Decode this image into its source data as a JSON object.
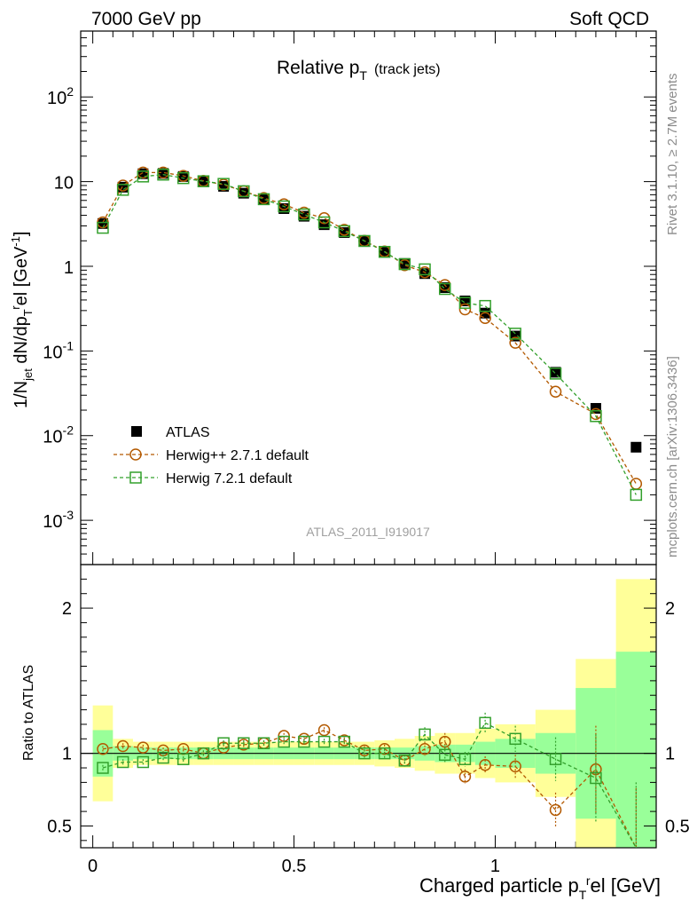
{
  "header": {
    "left": "7000 GeV pp",
    "right": "Soft QCD"
  },
  "plot_title": "Relative p",
  "plot_title_sub": "T",
  "plot_title_suffix": "(track jets)",
  "side_labels": {
    "rivet": "Rivet 3.1.10, ≥ 2.7M events",
    "mcplots": "mcplots.cern.ch [arXiv:1306.3436]"
  },
  "watermark": "ATLAS_2011_I919017",
  "ylabel_main": "1/N_jet dN/dp_T^rel [GeV^-1]",
  "ylabel_ratio": "Ratio to ATLAS",
  "xlabel": "Charged particle p_T^rel [GeV]",
  "legend": {
    "atlas": "ATLAS",
    "herwigpp": "Herwig++ 2.7.1 default",
    "herwig7": "Herwig 7.2.1 default"
  },
  "colors": {
    "atlas": "#000000",
    "herwigpp": "#b35900",
    "herwig7": "#33a02c",
    "band_inner": "#99ff99",
    "band_outer": "#ffff99"
  },
  "chart_data": [
    {
      "type": "scatter",
      "panel": "main",
      "yscale": "log",
      "xlim": [
        -0.03,
        1.4
      ],
      "ylim": [
        0.0003,
        600
      ],
      "yticklabels": [
        "10^-3",
        "10^-2",
        "10^-1",
        "1",
        "10",
        "10^2"
      ],
      "series": [
        {
          "name": "ATLAS",
          "x": [
            0.025,
            0.075,
            0.125,
            0.175,
            0.225,
            0.275,
            0.325,
            0.375,
            0.425,
            0.475,
            0.525,
            0.575,
            0.625,
            0.675,
            0.725,
            0.775,
            0.825,
            0.875,
            0.925,
            0.975,
            1.05,
            1.15,
            1.25,
            1.35
          ],
          "y": [
            3.2,
            8.6,
            12.4,
            12.5,
            11.5,
            10.2,
            8.8,
            7.3,
            6.2,
            4.8,
            3.9,
            3.1,
            2.5,
            2.0,
            1.48,
            1.08,
            0.82,
            0.56,
            0.39,
            0.28,
            0.15,
            0.056,
            0.021,
            0.0073
          ]
        },
        {
          "name": "Herwig++ 2.7.1 default",
          "x": [
            0.025,
            0.075,
            0.125,
            0.175,
            0.225,
            0.275,
            0.325,
            0.375,
            0.425,
            0.475,
            0.525,
            0.575,
            0.625,
            0.675,
            0.725,
            0.775,
            0.825,
            0.875,
            0.925,
            0.975,
            1.05,
            1.15,
            1.25,
            1.35
          ],
          "y": [
            3.3,
            9.0,
            12.8,
            12.8,
            11.7,
            10.2,
            9.2,
            7.7,
            6.4,
            5.4,
            4.3,
            3.7,
            2.7,
            2.0,
            1.5,
            1.03,
            0.85,
            0.6,
            0.31,
            0.245,
            0.125,
            0.033,
            0.018,
            0.0027
          ]
        },
        {
          "name": "Herwig 7.2.1 default",
          "x": [
            0.025,
            0.075,
            0.125,
            0.175,
            0.225,
            0.275,
            0.325,
            0.375,
            0.425,
            0.475,
            0.525,
            0.575,
            0.625,
            0.675,
            0.725,
            0.775,
            0.825,
            0.875,
            0.925,
            0.975,
            1.05,
            1.15,
            1.25,
            1.35
          ],
          "y": [
            2.85,
            8.0,
            11.5,
            12.1,
            11.0,
            10.1,
            9.4,
            7.7,
            6.2,
            5.1,
            4.1,
            3.3,
            2.6,
            1.99,
            1.48,
            1.06,
            0.92,
            0.54,
            0.37,
            0.34,
            0.16,
            0.054,
            0.017,
            0.002
          ]
        }
      ]
    },
    {
      "type": "scatter",
      "panel": "ratio",
      "xlim": [
        -0.03,
        1.4
      ],
      "ylim": [
        0.35,
        2.3
      ],
      "xticks": [
        0,
        0.5,
        1
      ],
      "yticks": [
        0.5,
        1,
        2
      ],
      "bins": [
        [
          0,
          0.05
        ],
        [
          0.05,
          0.1
        ],
        [
          0.1,
          0.15
        ],
        [
          0.15,
          0.2
        ],
        [
          0.2,
          0.25
        ],
        [
          0.25,
          0.3
        ],
        [
          0.3,
          0.35
        ],
        [
          0.35,
          0.4
        ],
        [
          0.4,
          0.45
        ],
        [
          0.45,
          0.5
        ],
        [
          0.5,
          0.55
        ],
        [
          0.55,
          0.6
        ],
        [
          0.6,
          0.65
        ],
        [
          0.65,
          0.7
        ],
        [
          0.7,
          0.75
        ],
        [
          0.75,
          0.8
        ],
        [
          0.8,
          0.85
        ],
        [
          0.85,
          0.9
        ],
        [
          0.9,
          0.95
        ],
        [
          0.95,
          1.0
        ],
        [
          1.0,
          1.1
        ],
        [
          1.1,
          1.2
        ],
        [
          1.2,
          1.3
        ],
        [
          1.3,
          1.4
        ]
      ],
      "band_inner": [
        0.16,
        0.05,
        0.04,
        0.04,
        0.04,
        0.04,
        0.04,
        0.04,
        0.04,
        0.04,
        0.04,
        0.04,
        0.04,
        0.04,
        0.04,
        0.04,
        0.05,
        0.06,
        0.06,
        0.08,
        0.1,
        0.14,
        0.45,
        0.7
      ],
      "band_outer": [
        0.33,
        0.1,
        0.08,
        0.08,
        0.08,
        0.08,
        0.08,
        0.08,
        0.08,
        0.08,
        0.08,
        0.08,
        0.08,
        0.08,
        0.09,
        0.1,
        0.12,
        0.14,
        0.14,
        0.17,
        0.2,
        0.3,
        0.65,
        1.2
      ],
      "series": [
        {
          "name": "Herwig++ 2.7.1 default",
          "x": [
            0.025,
            0.075,
            0.125,
            0.175,
            0.225,
            0.275,
            0.325,
            0.375,
            0.425,
            0.475,
            0.525,
            0.575,
            0.625,
            0.675,
            0.725,
            0.775,
            0.825,
            0.875,
            0.925,
            0.975,
            1.05,
            1.15,
            1.25,
            1.35
          ],
          "y": [
            1.03,
            1.05,
            1.04,
            1.02,
            1.03,
            1.0,
            1.04,
            1.06,
            1.07,
            1.12,
            1.1,
            1.16,
            1.09,
            1.02,
            1.03,
            0.95,
            1.03,
            1.08,
            0.84,
            0.92,
            0.91,
            0.61,
            0.89,
            0.26
          ],
          "err": [
            0.02,
            0.02,
            0.02,
            0.02,
            0.02,
            0.02,
            0.02,
            0.02,
            0.02,
            0.02,
            0.02,
            0.02,
            0.02,
            0.03,
            0.03,
            0.04,
            0.05,
            0.06,
            0.05,
            0.06,
            0.08,
            0.12,
            0.3,
            0.5
          ]
        },
        {
          "name": "Herwig 7.2.1 default",
          "x": [
            0.025,
            0.075,
            0.125,
            0.175,
            0.225,
            0.275,
            0.325,
            0.375,
            0.425,
            0.475,
            0.525,
            0.575,
            0.625,
            0.675,
            0.725,
            0.775,
            0.825,
            0.875,
            0.925,
            0.975,
            1.05,
            1.15,
            1.25,
            1.35
          ],
          "y": [
            0.9,
            0.94,
            0.94,
            0.97,
            0.96,
            1.0,
            1.07,
            1.07,
            1.07,
            1.08,
            1.08,
            1.08,
            1.08,
            1.0,
            1.0,
            0.95,
            1.13,
            0.99,
            0.96,
            1.21,
            1.1,
            0.96,
            0.83,
            0.3
          ],
          "err": [
            0.02,
            0.02,
            0.02,
            0.02,
            0.02,
            0.02,
            0.02,
            0.02,
            0.02,
            0.02,
            0.02,
            0.02,
            0.02,
            0.03,
            0.03,
            0.04,
            0.05,
            0.06,
            0.05,
            0.07,
            0.09,
            0.15,
            0.3,
            0.5
          ]
        }
      ]
    }
  ]
}
